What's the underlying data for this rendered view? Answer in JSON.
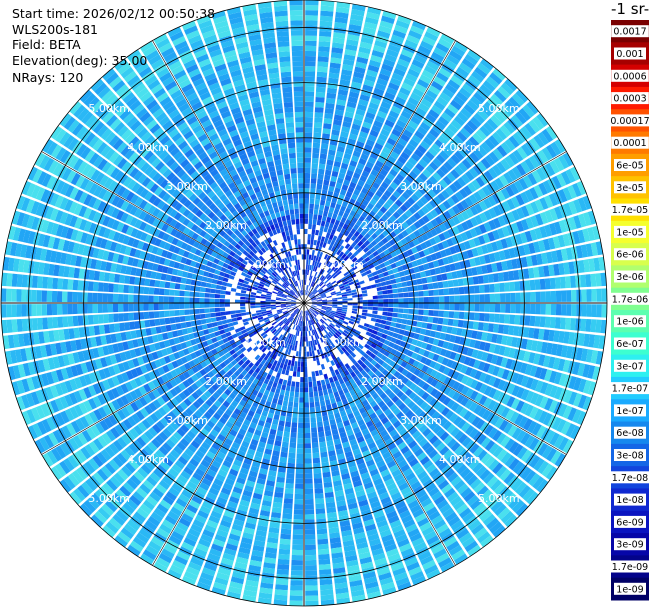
{
  "header": {
    "start_time": "Start time: 2026/02/12 00:50:38",
    "instrument": "WLS200s-181",
    "field": "Field: BETA",
    "elevation": "Elevation(deg): 35.00",
    "nrays": "NRays: 120"
  },
  "colorbar": {
    "title": "-1 sr-",
    "ticks": [
      "0.0017",
      "0.001",
      "0.0006",
      "0.0003",
      "0.00017",
      "0.0001",
      "6e-05",
      "3e-05",
      "1.7e-05",
      "1e-05",
      "6e-06",
      "3e-06",
      "1.7e-06",
      "1e-06",
      "6e-07",
      "3e-07",
      "1.7e-07",
      "1e-07",
      "6e-08",
      "3e-08",
      "1.7e-08",
      "1e-08",
      "6e-09",
      "3e-09",
      "1.7e-09",
      "1e-09"
    ],
    "colors": [
      "#7a0000",
      "#a60000",
      "#d40000",
      "#ff1a00",
      "#ff5200",
      "#ff7a00",
      "#ff9e00",
      "#ffc200",
      "#ffe000",
      "#f5ff2e",
      "#d8ff4d",
      "#b0ff6e",
      "#80ff90",
      "#5cffb0",
      "#3dffd0",
      "#2ef0f0",
      "#22ccff",
      "#1aaaff",
      "#1688ee",
      "#1466e6",
      "#1245dd",
      "#0f28d0",
      "#0a14c0",
      "#0606a8",
      "#03038a",
      "#000066"
    ]
  },
  "chart_data": {
    "type": "heatmap",
    "projection": "polar (PPI scan)",
    "field": "BETA",
    "n_rays": 120,
    "elevation_deg": 35.0,
    "range_rings_km": [
      1,
      2,
      3,
      4,
      5
    ],
    "range_labels": [
      "1.00km",
      "2.00km",
      "3.00km",
      "4.00km",
      "5.00km"
    ],
    "max_range_km": 5.5,
    "value_range": [
      1e-09,
      0.0017
    ],
    "scale": "log",
    "dominant_values": "mostly 3e-08 to 1e-07 (blue to cyan)",
    "grid": true
  }
}
